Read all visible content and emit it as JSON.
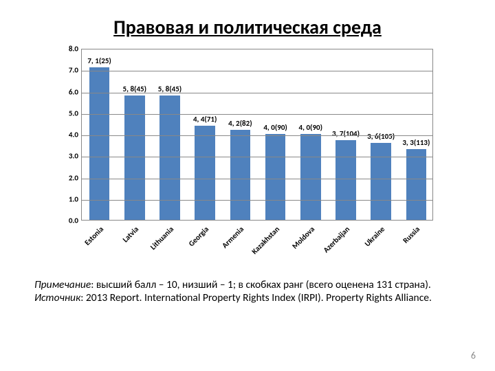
{
  "title": "Правовая и политическая среда",
  "chart": {
    "type": "bar",
    "ylim": [
      0,
      8
    ],
    "ytick_step": 1,
    "ytick_decimals": 1,
    "bar_color": "#4f81bd",
    "grid_color": "#888888",
    "border_color": "#888888",
    "background_color": "#ffffff",
    "label_fontsize": 11,
    "data_label_fontsize": 11,
    "x_label_rotation": -45,
    "bar_width_ratio": 0.58,
    "categories": [
      "Estonia",
      "Latvia",
      "Lithuania",
      "Georgia",
      "Armenia",
      "Kazakhstan",
      "Moldova",
      "Azerbaijan",
      "Ukraine",
      "Russia"
    ],
    "values": [
      7.1,
      5.8,
      5.8,
      4.4,
      4.2,
      4.0,
      4.0,
      3.7,
      3.6,
      3.3
    ],
    "data_labels": [
      "7, 1(25)",
      "5, 8(45)",
      "5, 8(45)",
      "4, 4(71)",
      "4, 2(82)",
      "4, 0(90)",
      "4, 0(90)",
      "3, 7(104)",
      "3, 6(105)",
      "3, 3(113)"
    ]
  },
  "note": {
    "line1_italic": "Примечание",
    "line1_rest": ": высший балл – 10, низший – 1; в скобках ранг (всего оценена 131 страна).",
    "line2_italic": "Источник",
    "line2_rest": ": 2013 Report. International Property Rights Index (IRPI).  Property Rights Alliance."
  },
  "page_number": "6"
}
